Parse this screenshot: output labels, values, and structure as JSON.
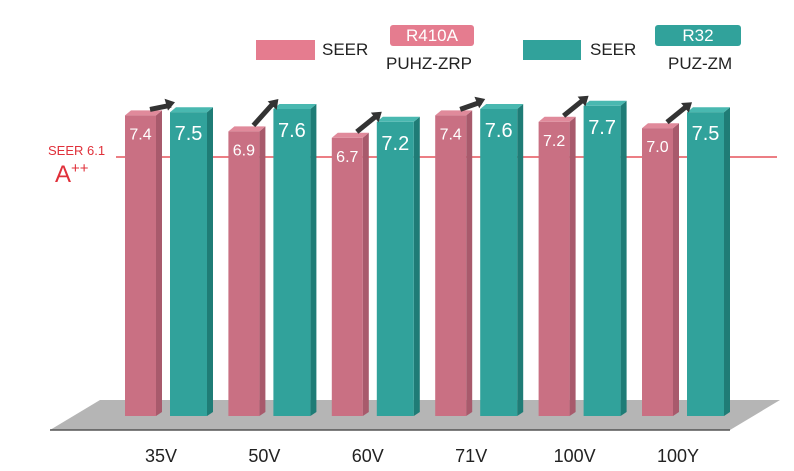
{
  "chart_data": {
    "type": "bar",
    "categories": [
      "35V",
      "50V",
      "60V",
      "71V",
      "100V",
      "100Y"
    ],
    "series": [
      {
        "name": "SEER R410A PUHZ-ZRP",
        "legend_label": "SEER",
        "refrigerant": "R410A",
        "model": "PUHZ-ZRP",
        "color": "#c97083",
        "values": [
          7.4,
          6.9,
          6.7,
          7.4,
          7.2,
          7.0
        ]
      },
      {
        "name": "SEER R32 PUZ-ZM",
        "legend_label": "SEER",
        "refrigerant": "R32",
        "model": "PUZ-ZM",
        "color": "#31a29b",
        "values": [
          7.5,
          7.6,
          7.2,
          7.6,
          7.7,
          7.5
        ]
      }
    ],
    "reference_line": {
      "value": 6.1,
      "label": "SEER 6.1",
      "class_label": "A",
      "class_sup": "++",
      "color": "#e0303a"
    },
    "legend_placement": "top-right",
    "grid": false
  }
}
